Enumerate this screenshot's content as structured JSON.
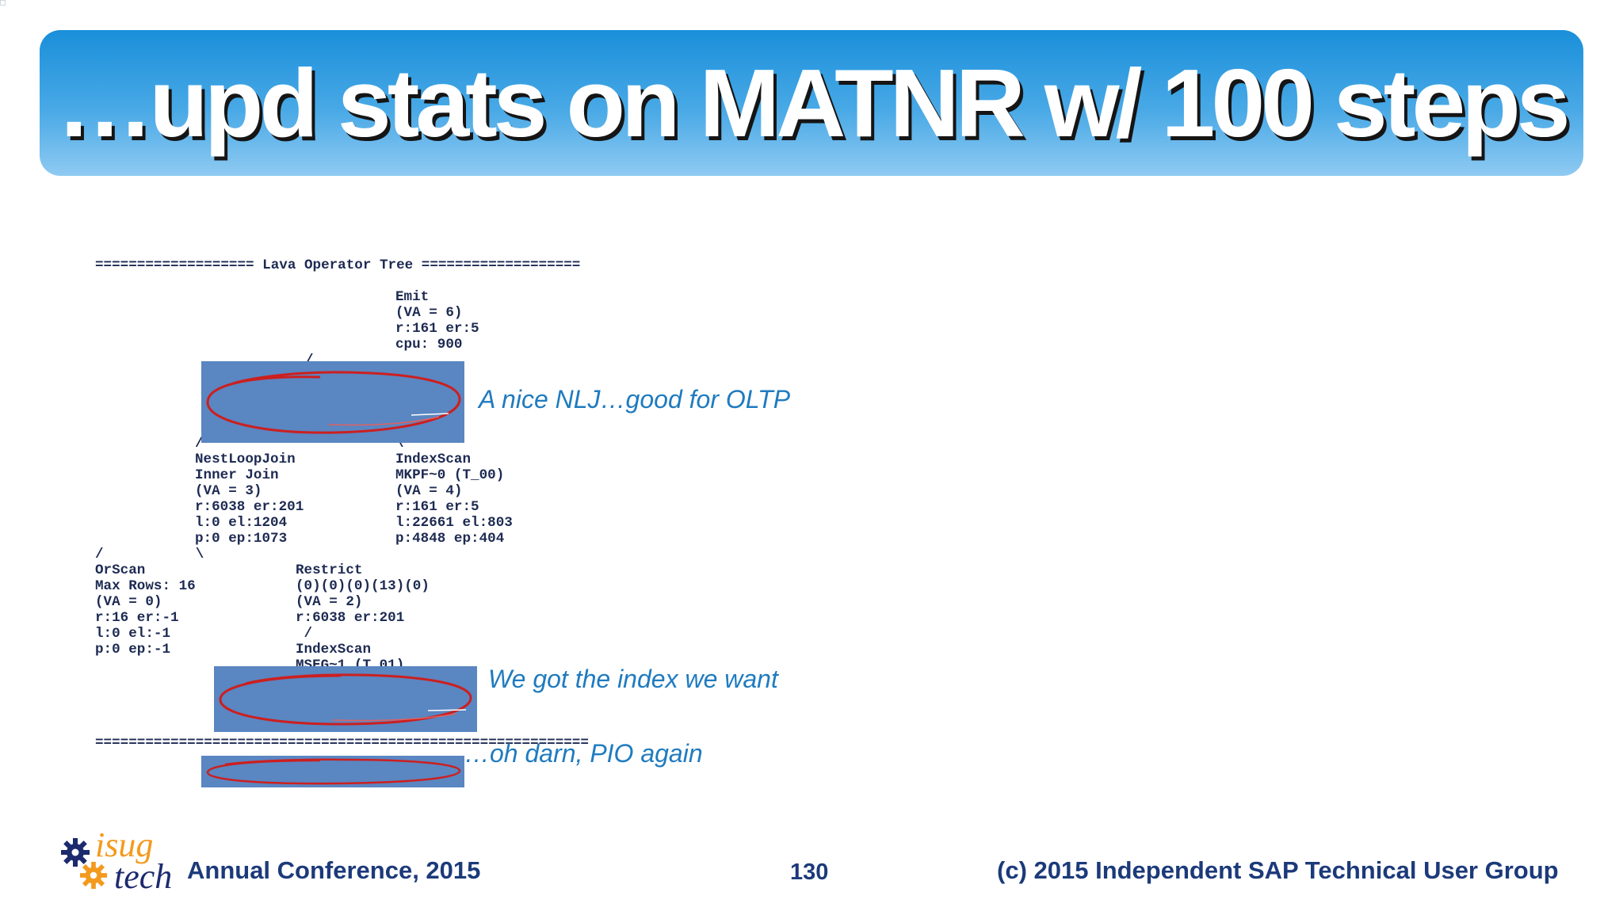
{
  "title": "…upd stats on MATNR w/ 100 steps",
  "plan": {
    "header": "=================== Lava Operator Tree ===================",
    "emit": "Emit\n(VA = 6)\nr:161 er:5\ncpu: 900",
    "emit_slash": "/",
    "nlj": "/\nNestLoopJoin\nInner Join\n(VA = 3)\nr:6038 er:201\nl:0 el:1204\np:0 ep:1073",
    "indexscan_top": "\\\nIndexScan\nMKPF~0 (T_00)\n(VA = 4)\nr:161 er:5\nl:22661 el:803\np:4848 ep:404",
    "nlj_branches": "/           \\",
    "orscan": "OrScan\nMax Rows: 16\n(VA = 0)\nr:16 er:-1\nl:0 el:-1\np:0 ep:-1",
    "restrict": "Restrict\n(0)(0)(0)(13)(0)\n(VA = 2)\nr:6038 er:201\n /\nIndexScan\nMSEG~1 (T_01)",
    "footer_rule": "==========================================================="
  },
  "annotations": {
    "nlj_note": "A nice NLJ…good for OLTP",
    "index_note": "We got the index we want",
    "pio_note": "…oh darn, PIO again"
  },
  "footer": {
    "logo_top": "isug",
    "logo_bottom": "tech",
    "conference": "Annual Conference, 2015",
    "page_number": "130",
    "copyright": "(c) 2015 Independent SAP Technical User Group"
  },
  "colors": {
    "title_bar": "#1a8fda",
    "highlight_box": "#5a86c2",
    "circle_stroke": "#cc1f1f",
    "annotation_text": "#1f7bbf",
    "footer_text": "#1c3a7a",
    "logo_orange": "#f39a1e",
    "logo_navy": "#1c2a6e"
  },
  "icons": [
    "gear-icon"
  ]
}
